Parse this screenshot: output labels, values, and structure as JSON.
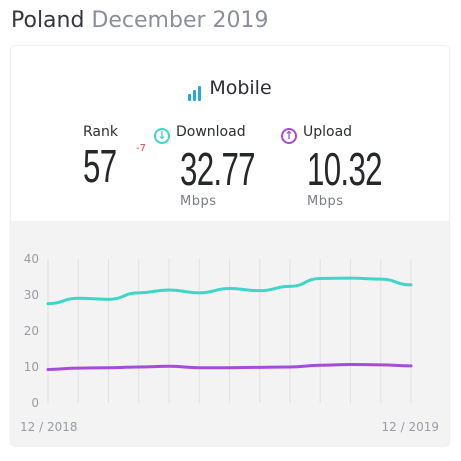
{
  "header": {
    "country": "Poland",
    "period": "December 2019"
  },
  "card": {
    "title": "Mobile",
    "rank": {
      "label": "Rank",
      "value": "57",
      "change": "-7"
    },
    "download": {
      "label": "Download",
      "value": "32.77",
      "unit": "Mbps",
      "color": "#3ed6c9"
    },
    "upload": {
      "label": "Upload",
      "value": "10.32",
      "unit": "Mbps",
      "color": "#a64cd8"
    }
  },
  "chart_data": {
    "type": "line",
    "x": [
      "12 / 2018",
      "1 / 2019",
      "2 / 2019",
      "3 / 2019",
      "4 / 2019",
      "5 / 2019",
      "6 / 2019",
      "7 / 2019",
      "8 / 2019",
      "9 / 2019",
      "10 / 2019",
      "11 / 2019",
      "12 / 2019"
    ],
    "x_tick_labels": [
      "12 / 2018",
      "12 / 2019"
    ],
    "y_ticks": [
      "0",
      "10",
      "20",
      "30",
      "40"
    ],
    "ylim": [
      0,
      40
    ],
    "grid": "vertical",
    "series": [
      {
        "values": [
          27.6,
          29.1,
          28.8,
          30.6,
          31.4,
          30.6,
          31.8,
          31.2,
          32.4,
          34.6,
          34.7,
          34.4,
          32.8
        ],
        "color": "#3ed6c9"
      },
      {
        "values": [
          9.3,
          9.7,
          9.8,
          10.0,
          10.2,
          9.8,
          9.8,
          9.9,
          10.0,
          10.5,
          10.7,
          10.6,
          10.3
        ],
        "color": "#a64cd8"
      }
    ]
  }
}
